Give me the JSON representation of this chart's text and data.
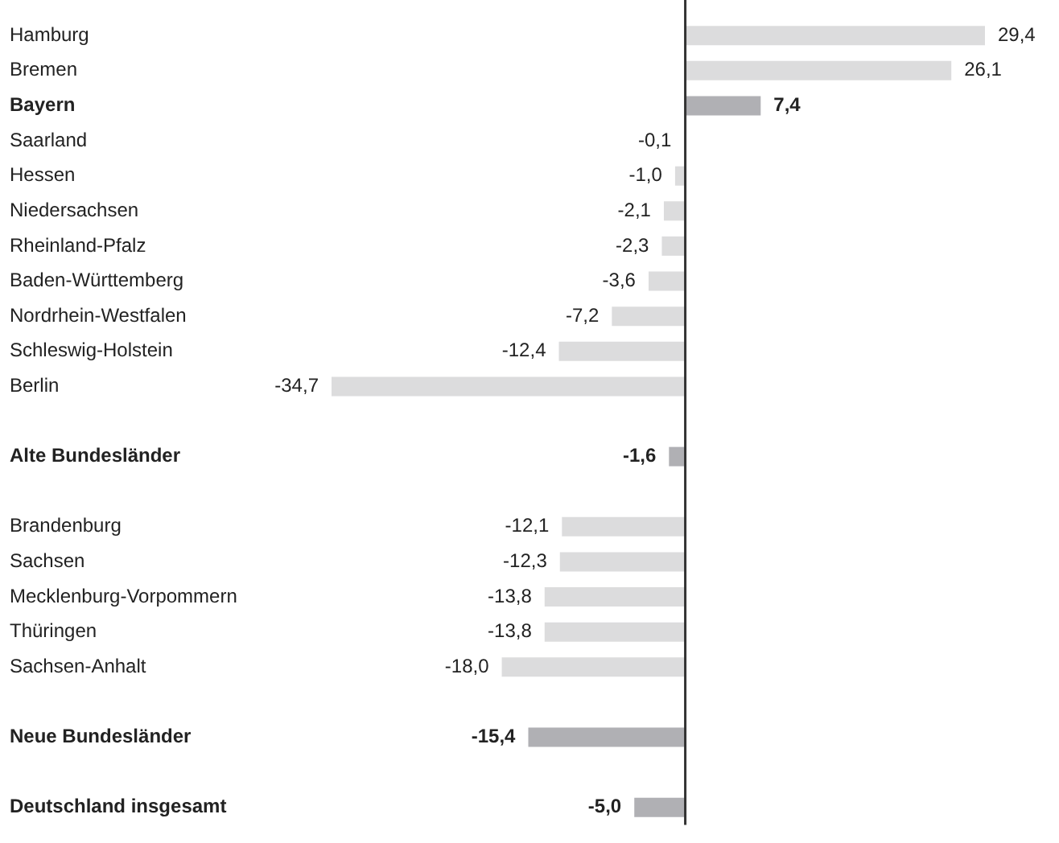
{
  "chart_data": {
    "type": "bar",
    "orientation": "horizontal",
    "categories": [
      "Hamburg",
      "Bremen",
      "Bayern",
      "Saarland",
      "Hessen",
      "Niedersachsen",
      "Rheinland-Pfalz",
      "Baden-Württemberg",
      "Nordrhein-Westfalen",
      "Schleswig-Holstein",
      "Berlin",
      null,
      "Alte Bundesländer",
      null,
      "Brandenburg",
      "Sachsen",
      "Mecklenburg-Vorpommern",
      "Thüringen",
      "Sachsen-Anhalt",
      null,
      "Neue Bundesländer",
      null,
      "Deutschland insgesamt"
    ],
    "values": [
      29.4,
      26.1,
      7.4,
      -0.1,
      -1.0,
      -2.1,
      -2.3,
      -3.6,
      -7.2,
      -12.4,
      -34.7,
      null,
      -1.6,
      null,
      -12.1,
      -12.3,
      -13.8,
      -13.8,
      -18.0,
      null,
      -15.4,
      null,
      -5.0
    ],
    "value_labels": [
      "29,4",
      "26,1",
      "7,4",
      "-0,1",
      "-1,0",
      "-2,1",
      "-2,3",
      "-3,6",
      "-7,2",
      "-12,4",
      "-34,7",
      null,
      "-1,6",
      null,
      "-12,1",
      "-12,3",
      "-13,8",
      "-13,8",
      "-18,0",
      null,
      "-15,4",
      null,
      "-5,0"
    ],
    "colors": [
      "#dcdcdd",
      "#dcdcdd",
      "#b0b0b4",
      "#dcdcdd",
      "#dcdcdd",
      "#dcdcdd",
      "#dcdcdd",
      "#dcdcdd",
      "#dcdcdd",
      "#dcdcdd",
      "#dcdcdd",
      "#dcdcdd",
      "#b0b0b4",
      "#dcdcdd",
      "#dcdcdd",
      "#dcdcdd",
      "#dcdcdd",
      "#dcdcdd",
      "#dcdcdd",
      "#dcdcdd",
      "#b0b0b4",
      "#dcdcdd",
      "#b0b0b4"
    ],
    "tick_labels": "y",
    "legend": false
  }
}
